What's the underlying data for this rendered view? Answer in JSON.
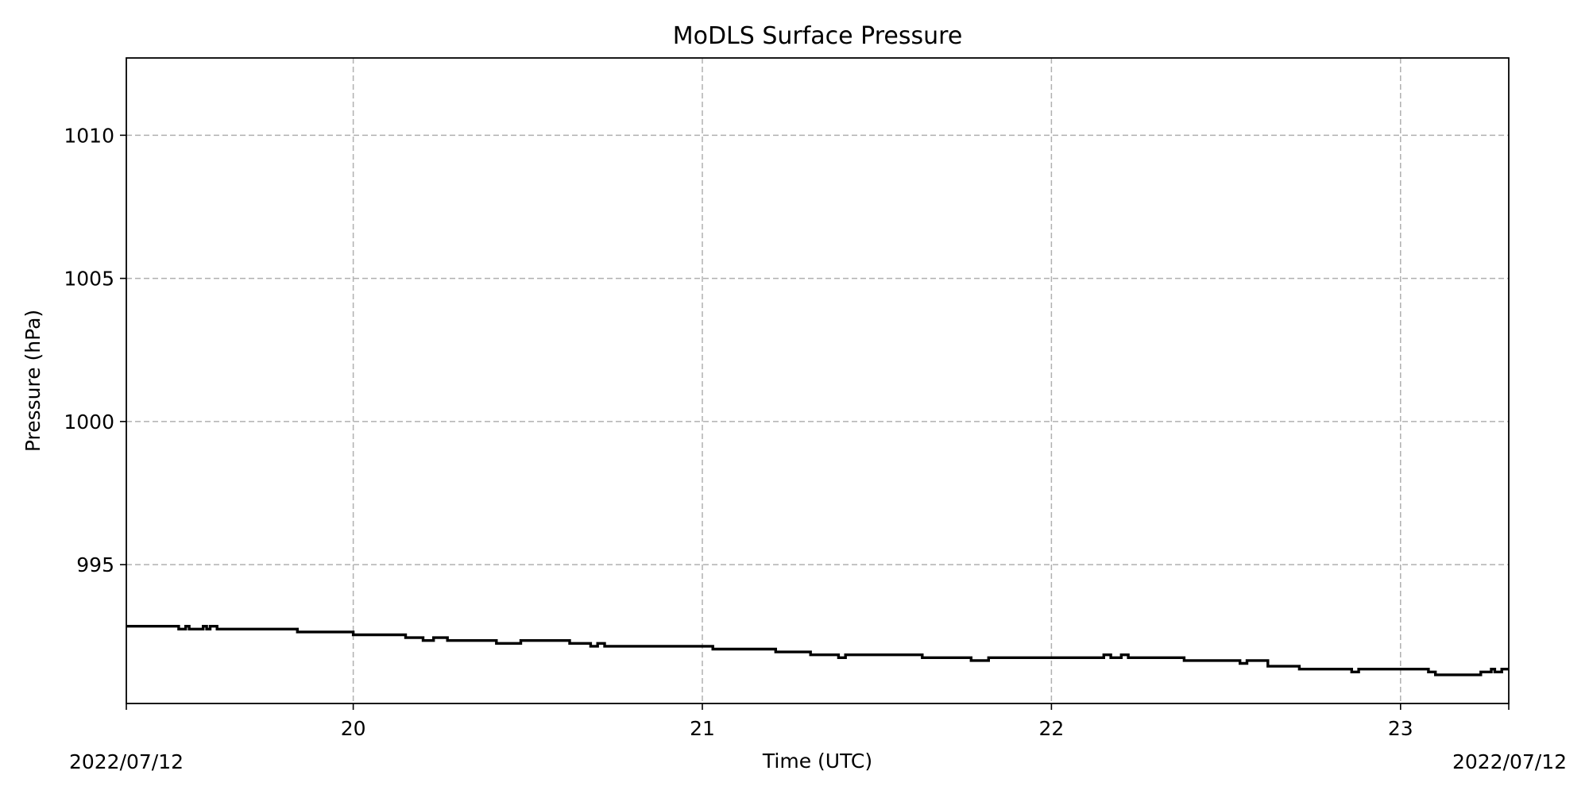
{
  "chart_data": {
    "type": "line",
    "title": "MoDLS Surface Pressure",
    "xlabel": "Time (UTC)",
    "ylabel": "Pressure (hPa)",
    "x_unit": "hour (UTC), 2022/07/12",
    "xlim": [
      19.35,
      23.31
    ],
    "ylim": [
      990.15,
      1012.7
    ],
    "x_ticks": [
      20,
      21,
      22,
      23
    ],
    "x_tick_labels": [
      "20",
      "21",
      "22",
      "23"
    ],
    "y_ticks": [
      995,
      1000,
      1005,
      1010
    ],
    "y_tick_labels": [
      "995",
      "1000",
      "1005",
      "1010"
    ],
    "date_left": "2022/07/12",
    "date_right": "2022/07/12",
    "grid": true,
    "line_color": "#000000",
    "series": [
      {
        "x": [
          19.35,
          19.5,
          19.5,
          19.52,
          19.52,
          19.53,
          19.53,
          19.57,
          19.57,
          19.58,
          19.58,
          19.59,
          19.59,
          19.61,
          19.61,
          19.84,
          19.84,
          20.0,
          20.0,
          20.15,
          20.15,
          20.2,
          20.2,
          20.23,
          20.23,
          20.27,
          20.27,
          20.41,
          20.41,
          20.48,
          20.48,
          20.62,
          20.62,
          20.68,
          20.68,
          20.7,
          20.7,
          20.72,
          20.72,
          21.03,
          21.03,
          21.21,
          21.21,
          21.31,
          21.31,
          21.39,
          21.39,
          21.41,
          21.41,
          21.63,
          21.63,
          21.77,
          21.77,
          21.82,
          21.82,
          22.15,
          22.15,
          22.17,
          22.17,
          22.2,
          22.2,
          22.22,
          22.22,
          22.38,
          22.38,
          22.54,
          22.54,
          22.56,
          22.56,
          22.62,
          22.62,
          22.71,
          22.71,
          22.86,
          22.86,
          22.88,
          22.88,
          23.08,
          23.08,
          23.1,
          23.1,
          23.23,
          23.23,
          23.26,
          23.26,
          23.27,
          23.27,
          23.29,
          23.29,
          23.31
        ],
        "y": [
          992.85,
          992.85,
          992.75,
          992.75,
          992.85,
          992.85,
          992.75,
          992.75,
          992.85,
          992.85,
          992.75,
          992.75,
          992.85,
          992.85,
          992.75,
          992.75,
          992.65,
          992.65,
          992.55,
          992.55,
          992.45,
          992.45,
          992.35,
          992.35,
          992.45,
          992.45,
          992.35,
          992.35,
          992.25,
          992.25,
          992.35,
          992.35,
          992.25,
          992.25,
          992.15,
          992.15,
          992.25,
          992.25,
          992.15,
          992.15,
          992.05,
          992.05,
          991.95,
          991.95,
          991.85,
          991.85,
          991.75,
          991.75,
          991.85,
          991.85,
          991.75,
          991.75,
          991.65,
          991.65,
          991.75,
          991.75,
          991.85,
          991.85,
          991.75,
          991.75,
          991.85,
          991.85,
          991.75,
          991.75,
          991.65,
          991.65,
          991.55,
          991.55,
          991.65,
          991.65,
          991.45,
          991.45,
          991.35,
          991.35,
          991.25,
          991.25,
          991.35,
          991.35,
          991.25,
          991.25,
          991.15,
          991.15,
          991.25,
          991.25,
          991.35,
          991.35,
          991.25,
          991.25,
          991.35,
          991.35
        ]
      }
    ]
  }
}
